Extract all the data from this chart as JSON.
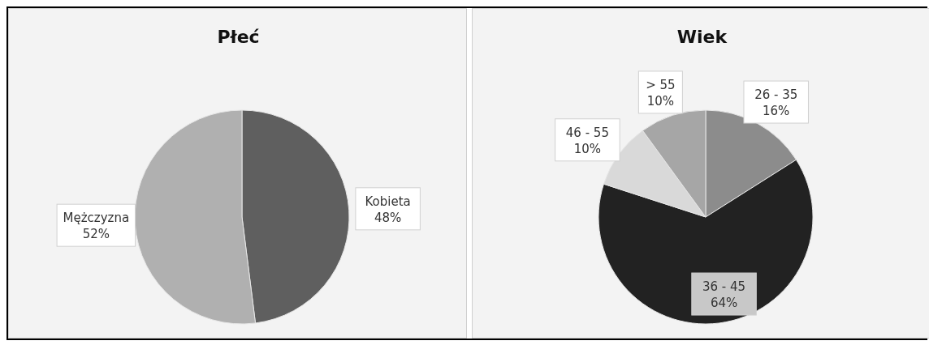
{
  "chart_data": [
    {
      "type": "pie",
      "title": "Płeć",
      "categories": [
        "Kobieta",
        "Mężczyzna"
      ],
      "values": [
        48,
        52
      ],
      "value_labels": [
        "48%",
        "52%"
      ],
      "colors": [
        "#5f5f5f",
        "#b0b0b0"
      ]
    },
    {
      "type": "pie",
      "title": "Wiek",
      "categories": [
        "26 - 35",
        "36 - 45",
        "46 - 55",
        "> 55"
      ],
      "values": [
        16,
        64,
        10,
        10
      ],
      "value_labels": [
        "16%",
        "64%",
        "10%",
        "10%"
      ],
      "colors": [
        "#8c8c8c",
        "#222222",
        "#d9d9d9",
        "#a6a6a6"
      ]
    }
  ]
}
